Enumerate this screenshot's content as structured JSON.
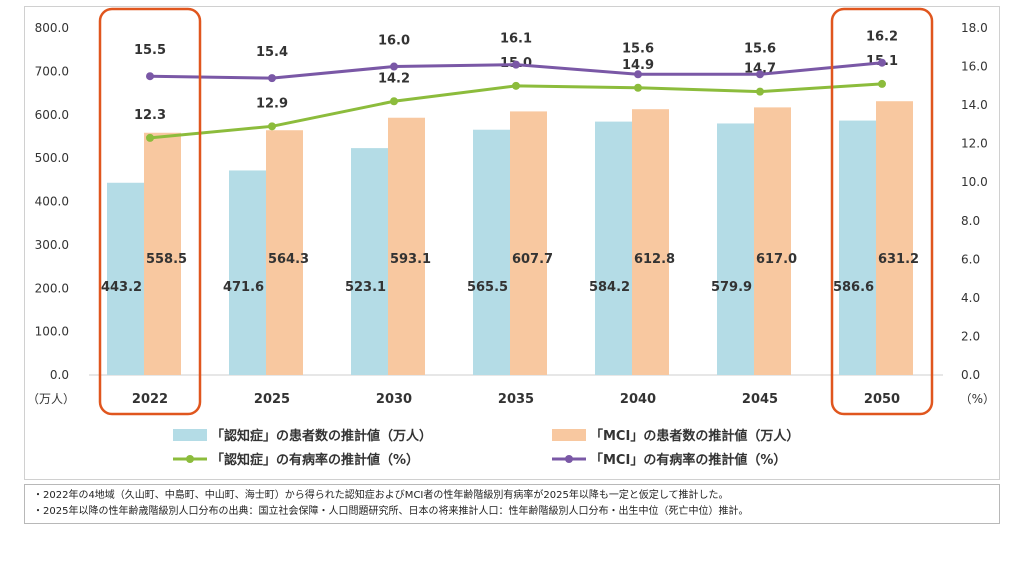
{
  "chart_data": {
    "type": "bar",
    "categories": [
      "2022",
      "2025",
      "2030",
      "2035",
      "2040",
      "2045",
      "2050"
    ],
    "series": [
      {
        "name": "「認知症」の患者数の推計値（万人）",
        "kind": "bar",
        "axis": "left",
        "color": "#b4dce6",
        "values": [
          443.2,
          471.6,
          523.1,
          565.5,
          584.2,
          579.9,
          586.6
        ],
        "labels": [
          "443.2",
          "471.6",
          "523.1",
          "565.5",
          "584.2",
          "579.9",
          "586.6"
        ]
      },
      {
        "name": "「MCI」の患者数の推計値（万人）",
        "kind": "bar",
        "axis": "left",
        "color": "#f8c8a0",
        "values": [
          558.5,
          564.3,
          593.1,
          607.7,
          612.8,
          617.0,
          631.2
        ],
        "labels": [
          "558.5",
          "564.3",
          "593.1",
          "607.7",
          "612.8",
          "617.0",
          "631.2"
        ]
      },
      {
        "name": "「認知症」の有病率の推計値（%）",
        "kind": "line",
        "axis": "right",
        "color": "#8cbc3c",
        "values": [
          12.3,
          12.9,
          14.2,
          15.0,
          14.9,
          14.7,
          15.1
        ],
        "labels": [
          "12.3",
          "12.9",
          "14.2",
          "15.0",
          "14.9",
          "14.7",
          "15.1"
        ]
      },
      {
        "name": "「MCI」の有病率の推計値（%）",
        "kind": "line",
        "axis": "right",
        "color": "#7a58a6",
        "values": [
          15.5,
          15.4,
          16.0,
          16.1,
          15.6,
          15.6,
          16.2
        ],
        "labels": [
          "15.5",
          "15.4",
          "16.0",
          "16.1",
          "15.6",
          "15.6",
          "16.2"
        ]
      }
    ],
    "y_left": {
      "lim": [
        0,
        800
      ],
      "ticks": [
        "0.0",
        "100.0",
        "200.0",
        "300.0",
        "400.0",
        "500.0",
        "600.0",
        "700.0",
        "800.0"
      ],
      "unit": "（万人）"
    },
    "y_right": {
      "lim": [
        0,
        18
      ],
      "ticks": [
        "0.0",
        "2.0",
        "4.0",
        "6.0",
        "8.0",
        "10.0",
        "12.0",
        "14.0",
        "16.0",
        "18.0"
      ],
      "unit": "（%）"
    },
    "highlighted_categories": [
      "2022",
      "2050"
    ],
    "highlight_color": "#e0561e",
    "grid": false,
    "legend_placement": "bottom"
  },
  "notes": [
    "・2022年の4地域（久山町、中島町、中山町、海士町）から得られた認知症およびMCI者の性年齢階級別有病率が2025年以降も一定と仮定して推計した。",
    "・2025年以降の性年齢歳階級別人口分布の出典：国立社会保障・人口問題研究所、日本の将来推計人口：性年齢階級別人口分布・出生中位（死亡中位）推計。"
  ]
}
